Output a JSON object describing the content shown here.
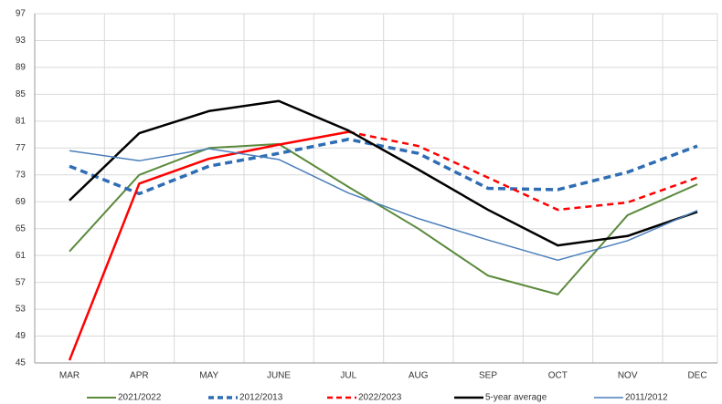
{
  "chart_data": {
    "type": "line",
    "categories": [
      "MAR",
      "APR",
      "MAY",
      "JUNE",
      "JUL",
      "AUG",
      "SEP",
      "OCT",
      "NOV",
      "DEC"
    ],
    "ylim": [
      45,
      97
    ],
    "yticks": [
      45,
      49,
      53,
      57,
      61,
      65,
      69,
      73,
      77,
      81,
      85,
      89,
      93,
      97
    ],
    "grid": true,
    "legend": "bottom",
    "series": [
      {
        "name": "2021/2022",
        "color": "#5b8a3c",
        "width": 2,
        "dashed": false,
        "values": [
          61.6,
          73,
          77,
          77.6,
          71.2,
          65,
          58,
          55.2,
          67,
          71.6
        ]
      },
      {
        "name": "2012/2013",
        "color": "#2e6db4",
        "width": 3.5,
        "dashed": true,
        "values": [
          74.3,
          70.2,
          74.3,
          76.2,
          78.3,
          76.2,
          71,
          70.8,
          73.4,
          77.3
        ]
      },
      {
        "name": "2022/2023",
        "color": "#ff0000",
        "width": 2.5,
        "dashed": false,
        "dashed_after": "JUL",
        "values": [
          45.4,
          71.7,
          75.4,
          77.5,
          79.4,
          77.3,
          72.6,
          67.8,
          68.9,
          72.6
        ]
      },
      {
        "name": "5-year average",
        "color": "#000000",
        "width": 2.5,
        "dashed": false,
        "values": [
          69.2,
          79.2,
          82.5,
          84,
          79.6,
          73.8,
          67.8,
          62.5,
          63.9,
          67.5
        ]
      },
      {
        "name": "2011/2012",
        "color": "#4a7ebb",
        "width": 1.5,
        "dashed": false,
        "values": [
          76.6,
          75.1,
          76.9,
          75.3,
          70.3,
          66.5,
          63.3,
          60.3,
          63.2,
          67.7
        ]
      }
    ]
  }
}
